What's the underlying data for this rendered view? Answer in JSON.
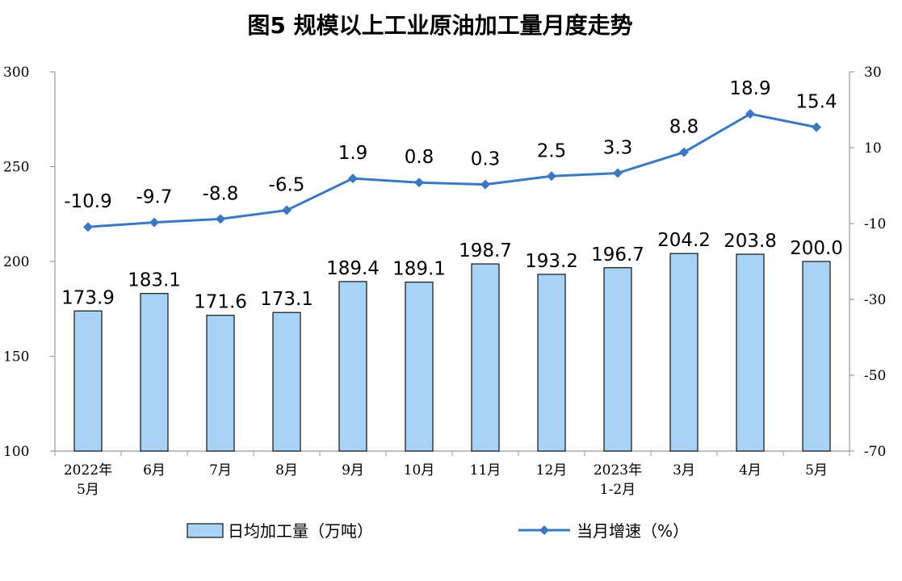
{
  "chart_data": {
    "type": "bar",
    "title": "图5  规模以上工业原油加工量月度走势",
    "categories": [
      [
        "2022年",
        "5月"
      ],
      [
        "6月"
      ],
      [
        "7月"
      ],
      [
        "8月"
      ],
      [
        "9月"
      ],
      [
        "10月"
      ],
      [
        "11月"
      ],
      [
        "12月"
      ],
      [
        "2023年",
        "1-2月"
      ],
      [
        "3月"
      ],
      [
        "4月"
      ],
      [
        "5月"
      ]
    ],
    "series": [
      {
        "name": "日均加工量（万吨）",
        "type": "bar",
        "axis": "left",
        "values": [
          173.9,
          183.1,
          171.6,
          173.1,
          189.4,
          189.1,
          198.7,
          193.2,
          196.7,
          204.2,
          203.8,
          200.0
        ],
        "labels": [
          "173.9",
          "183.1",
          "171.6",
          "173.1",
          "189.4",
          "189.1",
          "198.7",
          "193.2",
          "196.7",
          "204.2",
          "203.8",
          "200.0"
        ]
      },
      {
        "name": "当月增速（%）",
        "type": "line",
        "axis": "right",
        "values": [
          -10.9,
          -9.7,
          -8.8,
          -6.5,
          1.9,
          0.8,
          0.3,
          2.5,
          3.3,
          8.8,
          18.9,
          15.4
        ],
        "labels": [
          "-10.9",
          "-9.7",
          "-8.8",
          "-6.5",
          "1.9",
          "0.8",
          "0.3",
          "2.5",
          "3.3",
          "8.8",
          "18.9",
          "15.4"
        ]
      }
    ],
    "y_left": {
      "range": [
        100,
        300
      ],
      "ticks": [
        "100",
        "150",
        "200",
        "250",
        "300"
      ]
    },
    "y_right": {
      "range": [
        -70,
        30
      ],
      "ticks": [
        "-70",
        "-50",
        "-30",
        "-10",
        "10",
        "30"
      ]
    },
    "grid": false,
    "legend_position": "bottom",
    "colors": {
      "bar_fill": "#a9d3f5",
      "bar_stroke": "#111111",
      "line": "#3a78c3",
      "axis": "#9a9a9a"
    }
  }
}
